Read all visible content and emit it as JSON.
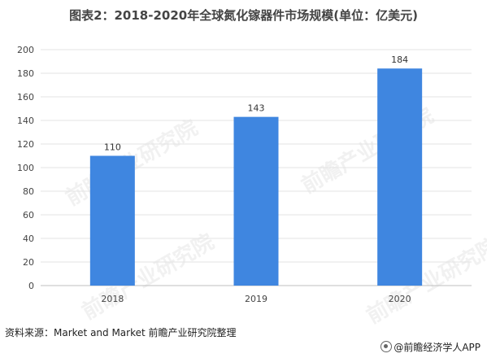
{
  "title": "图表2：2018-2020年全球氮化镓器件市场规模(单位：亿美元)",
  "source": "资料来源：Market and Market 前瞻产业研究院整理",
  "brand": "@前瞻经济学人APP",
  "watermark": "前瞻产业研究院",
  "colors": {
    "bar": "#3f86e0",
    "grid": "#e3e3e3",
    "axis": "#bfbfbf"
  },
  "chart_data": {
    "type": "bar",
    "title": "图表2：2018-2020年全球氮化镓器件市场规模(单位：亿美元)",
    "categories": [
      "2018",
      "2019",
      "2020"
    ],
    "values": [
      110,
      143,
      184
    ],
    "data_labels": [
      "110",
      "143",
      "184"
    ],
    "yticks": [
      "0",
      "20",
      "40",
      "60",
      "80",
      "100",
      "120",
      "140",
      "160",
      "180",
      "200"
    ],
    "ylim": [
      0,
      200
    ],
    "xlabel": "",
    "ylabel": "",
    "grid": true,
    "legend": "none"
  }
}
